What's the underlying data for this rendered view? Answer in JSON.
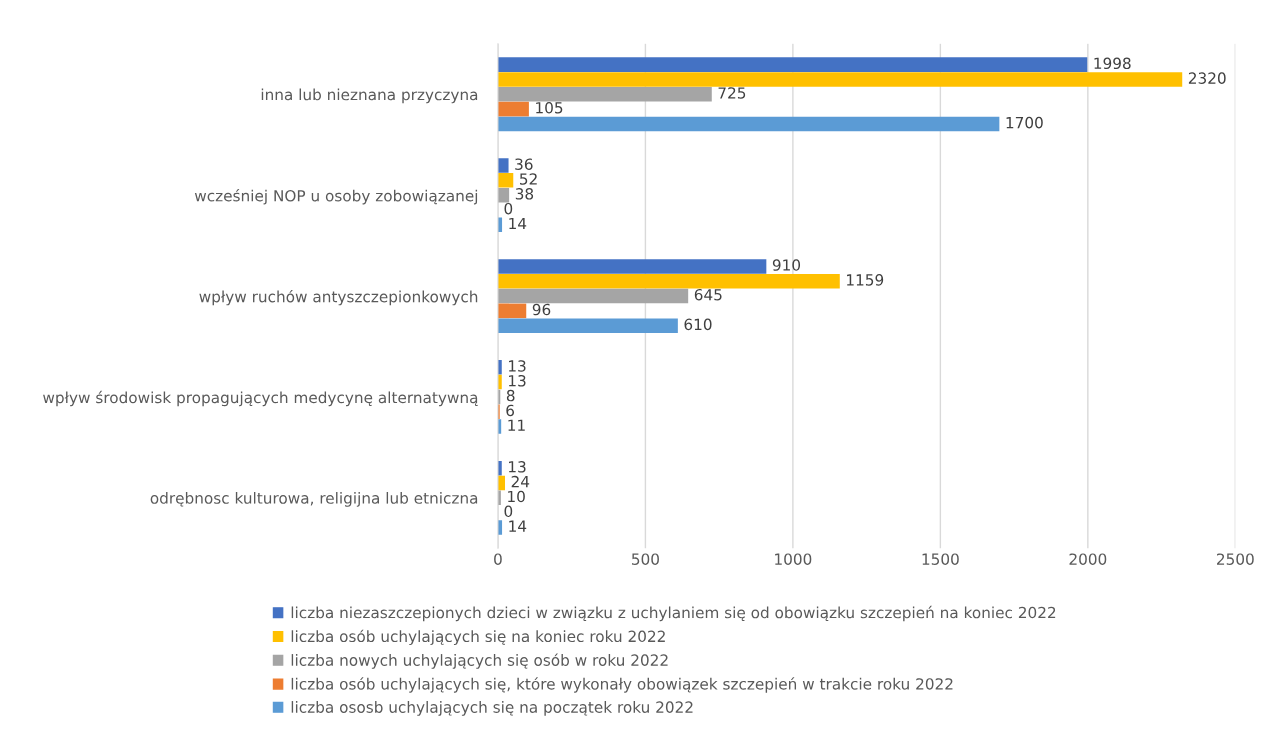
{
  "chart_data": {
    "type": "bar",
    "orientation": "horizontal",
    "categories": [
      "inna lub nieznana przyczyna",
      "wcześniej NOP u osoby zobowiązanej",
      "wpływ ruchów antyszczepionkowych",
      "wpływ środowisk propagujących medycynę alternatywną",
      "odrębnosc kulturowa, religijna lub etniczna"
    ],
    "series": [
      {
        "name": "liczba niezaszczepionych dzieci w związku z uchylaniem się od obowiązku szczepień na koniec 2022",
        "color": "#4472c4",
        "values": [
          1998,
          36,
          910,
          13,
          13
        ]
      },
      {
        "name": "liczba osób uchylających się na koniec roku 2022",
        "color": "#ffc000",
        "values": [
          2320,
          52,
          1159,
          13,
          24
        ]
      },
      {
        "name": "liczba nowych uchylających się osób w roku 2022",
        "color": "#a5a5a5",
        "values": [
          725,
          38,
          645,
          8,
          10
        ]
      },
      {
        "name": "liczba osób uchylających się, które wykonały obowiązek szczepień w trakcie roku 2022",
        "color": "#ed7d31",
        "values": [
          105,
          0,
          96,
          6,
          0
        ]
      },
      {
        "name": "liczba ososb uchylających się na początek roku 2022",
        "color": "#5b9bd5",
        "values": [
          1700,
          14,
          610,
          11,
          14
        ]
      }
    ],
    "xlim": [
      0,
      2500
    ],
    "xticks": [
      0,
      500,
      1000,
      1500,
      2000,
      2500
    ],
    "grid": "x",
    "legend": "bottom",
    "data_labels": true
  }
}
